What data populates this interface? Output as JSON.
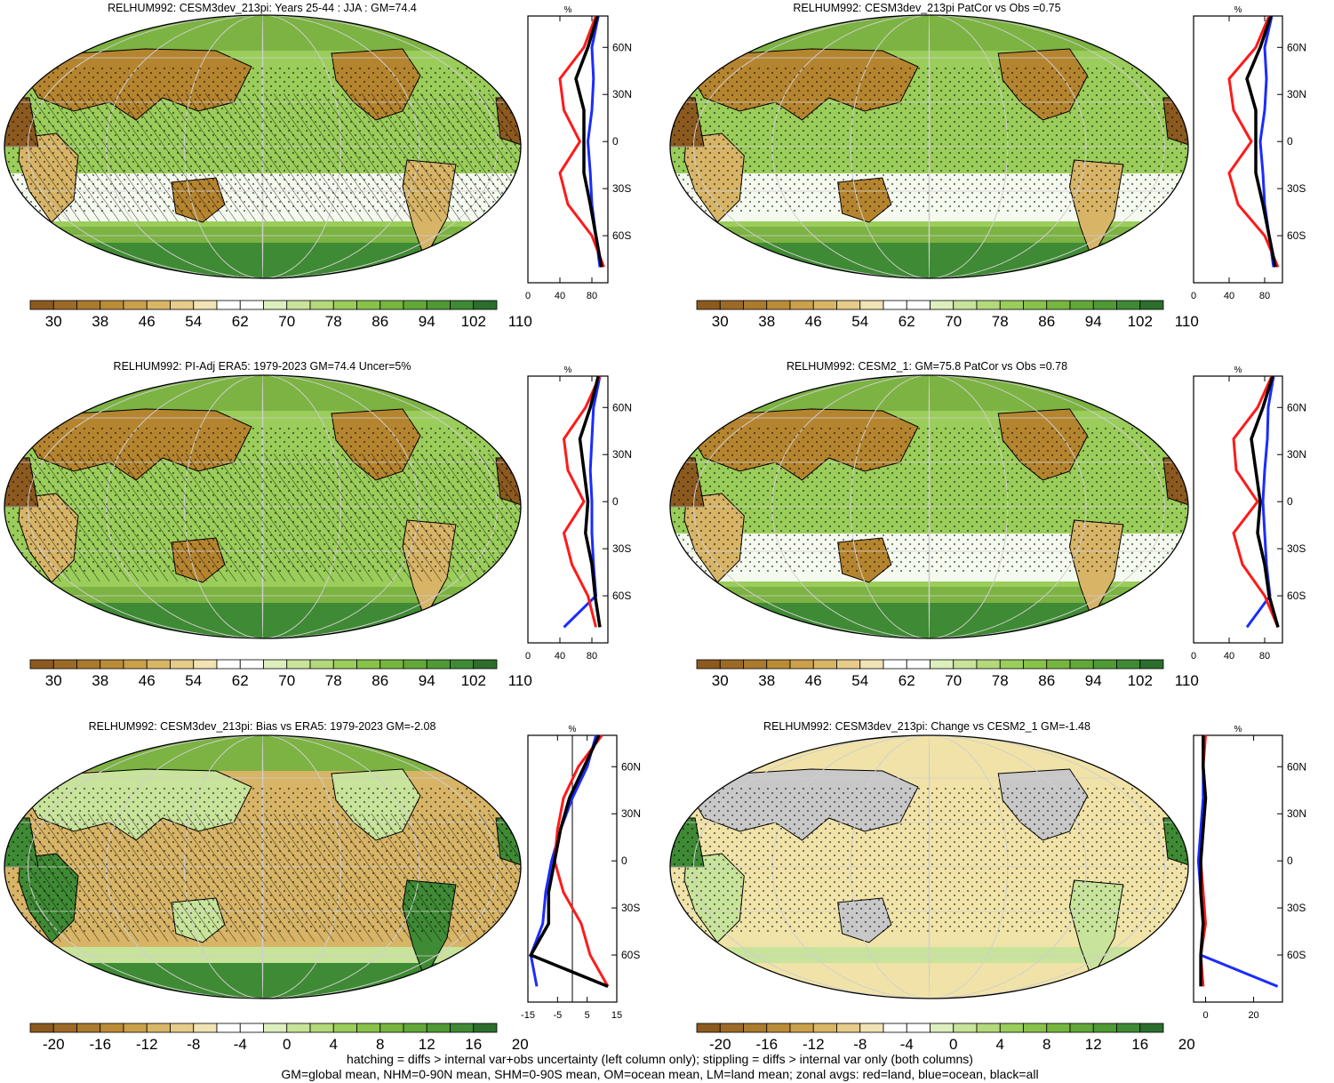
{
  "colors": {
    "brown_dark": "#8c5a1f",
    "brown": "#b5842f",
    "tan": "#d7b466",
    "cream": "#f1e3a8",
    "white": "#ffffff",
    "green_light": "#c8e39a",
    "green": "#9acd5a",
    "green_mid": "#7cb342",
    "green_dark": "#3f8a34",
    "green_darkest": "#2c6e2c",
    "gray_missing": "#c8c8c8",
    "land_line": "#ff1a1a",
    "ocean_line": "#1a2cff",
    "all_line": "#000000"
  },
  "colorbars": {
    "abs": {
      "labels": [
        "30",
        "38",
        "46",
        "54",
        "62",
        "70",
        "78",
        "86",
        "94",
        "102",
        "110"
      ],
      "fills": [
        "#8c5a1f",
        "#9c6a26",
        "#ab7a2d",
        "#bb8c37",
        "#cba04a",
        "#d9b666",
        "#e6cb8a",
        "#f1e3b4",
        "#ffffff",
        "#ffffff",
        "#dcefbd",
        "#c8e39a",
        "#b3d97b",
        "#9acd5a",
        "#88c24a",
        "#76b63e",
        "#62a838",
        "#4f9a34",
        "#3f8a34",
        "#2c6e2c"
      ]
    },
    "diff": {
      "labels": [
        "-20",
        "-16",
        "-12",
        "-8",
        "-4",
        "0",
        "4",
        "8",
        "12",
        "16",
        "20"
      ],
      "fills": [
        "#8c5a1f",
        "#9c6a26",
        "#ab7a2d",
        "#bb8c37",
        "#cba04a",
        "#d9b666",
        "#e6cb8a",
        "#f1e3b4",
        "#ffffff",
        "#ffffff",
        "#dcefbd",
        "#c8e39a",
        "#b3d97b",
        "#9acd5a",
        "#88c24a",
        "#76b63e",
        "#62a838",
        "#4f9a34",
        "#3f8a34",
        "#2c6e2c"
      ]
    }
  },
  "lat_labels": [
    "60N",
    "30N",
    "0",
    "30S",
    "60S"
  ],
  "zonal_unit": "%",
  "chart_data": [
    {
      "type": "heatmap",
      "title": "RELHUM992: CESM3dev_213pi: Years 25-44 : JJA : GM=74.4",
      "colorbar": "abs",
      "zonal": {
        "xticks": [
          "0",
          "40",
          "80"
        ],
        "xlim": [
          0,
          100
        ],
        "lat": [
          80,
          60,
          40,
          20,
          0,
          -20,
          -40,
          -60,
          -80
        ],
        "land": [
          85,
          70,
          40,
          45,
          65,
          40,
          50,
          80,
          95
        ],
        "ocean": [
          88,
          80,
          82,
          80,
          75,
          78,
          80,
          85,
          90
        ],
        "all": [
          87,
          75,
          60,
          70,
          70,
          70,
          78,
          85,
          92
        ]
      }
    },
    {
      "type": "heatmap",
      "title": "RELHUM992: CESM3dev_213pi PatCor vs Obs =0.75",
      "colorbar": "abs",
      "zonal": {
        "xticks": [
          "0",
          "40",
          "80"
        ],
        "xlim": [
          0,
          100
        ],
        "lat": [
          80,
          60,
          40,
          20,
          0,
          -20,
          -40,
          -60,
          -80
        ],
        "land": [
          85,
          70,
          40,
          45,
          65,
          40,
          50,
          80,
          95
        ],
        "ocean": [
          88,
          80,
          82,
          80,
          75,
          78,
          80,
          85,
          90
        ],
        "all": [
          87,
          75,
          60,
          70,
          70,
          70,
          78,
          85,
          92
        ]
      }
    },
    {
      "type": "heatmap",
      "title": "RELHUM992: PI-Adj ERA5: 1979-2023 GM=74.4 Uncer=5%",
      "colorbar": "abs",
      "zonal": {
        "xticks": [
          "0",
          "40",
          "80"
        ],
        "xlim": [
          0,
          100
        ],
        "lat": [
          80,
          60,
          40,
          20,
          0,
          -20,
          -40,
          -60,
          -80
        ],
        "land": [
          90,
          72,
          45,
          50,
          70,
          45,
          55,
          75,
          85
        ],
        "ocean": [
          90,
          82,
          80,
          78,
          80,
          80,
          82,
          85,
          45
        ],
        "all": [
          88,
          78,
          65,
          70,
          75,
          72,
          80,
          84,
          90
        ]
      }
    },
    {
      "type": "heatmap",
      "title": "RELHUM992: CESM2_1: GM=75.8 PatCor vs Obs =0.78",
      "colorbar": "abs",
      "zonal": {
        "xticks": [
          "0",
          "40",
          "80"
        ],
        "xlim": [
          0,
          100
        ],
        "lat": [
          80,
          60,
          40,
          20,
          0,
          -20,
          -40,
          -60,
          -80
        ],
        "land": [
          88,
          72,
          45,
          48,
          72,
          45,
          55,
          80,
          95
        ],
        "ocean": [
          90,
          84,
          83,
          80,
          78,
          80,
          82,
          86,
          60
        ],
        "all": [
          89,
          78,
          65,
          70,
          75,
          72,
          80,
          85,
          95
        ]
      }
    },
    {
      "type": "heatmap",
      "title": "RELHUM992: CESM3dev_213pi: Bias vs ERA5: 1979-2023 GM=-2.08",
      "colorbar": "diff",
      "zonal": {
        "xticks": [
          "-15",
          "-5",
          "5",
          "15"
        ],
        "xlim": [
          -15,
          15
        ],
        "lat": [
          80,
          60,
          40,
          20,
          0,
          -20,
          -40,
          -60,
          -80
        ],
        "land": [
          10,
          2,
          -3,
          -5,
          -6,
          -3,
          3,
          6,
          12
        ],
        "ocean": [
          8,
          5,
          0,
          -4,
          -7,
          -9,
          -10,
          -14,
          -12
        ],
        "all": [
          9,
          4,
          -1,
          -4,
          -6,
          -8,
          -8,
          -14,
          12
        ]
      }
    },
    {
      "type": "heatmap",
      "title": "RELHUM992: CESM3dev_213pi: Change vs CESM2_1 GM=-1.48",
      "colorbar": "diff",
      "zonal": {
        "xticks": [
          "0",
          "20"
        ],
        "xlim": [
          -5,
          32
        ],
        "lat": [
          80,
          60,
          40,
          20,
          0,
          -20,
          -40,
          -60,
          -80
        ],
        "land": [
          0,
          -1,
          0,
          -1,
          -2,
          -1,
          0,
          -2,
          -1
        ],
        "ocean": [
          -1,
          -1,
          -1,
          -2,
          -3,
          -2,
          -1,
          -2,
          30
        ],
        "all": [
          -1,
          -1,
          0,
          -1,
          -2,
          -2,
          -1,
          -2,
          -2
        ]
      }
    }
  ],
  "footer": {
    "line1": "hatching = diffs > internal var+obs uncertainty (left column only); stippling = diffs > internal var only (both columns)",
    "line2": "GM=global mean, NHM=0-90N mean, SHM=0-90S mean, OM=ocean mean, LM=land mean; zonal avgs: red=land, blue=ocean, black=all"
  }
}
